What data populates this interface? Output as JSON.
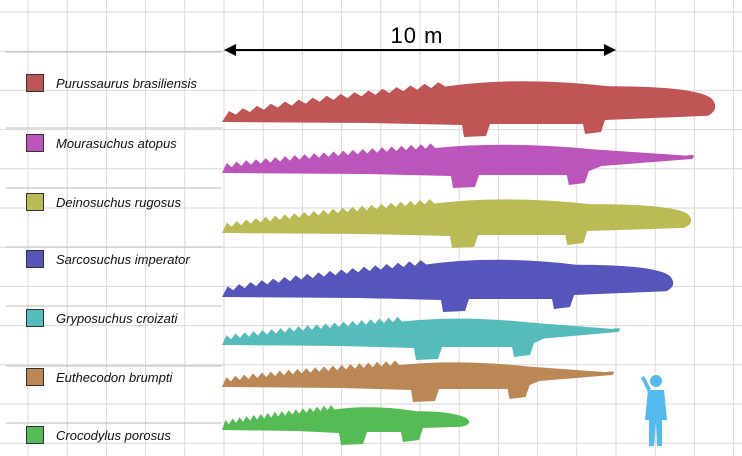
{
  "scale": {
    "label": "10 m"
  },
  "species": [
    {
      "name": "Purussaurus brasiliensis",
      "color": "#c05555"
    },
    {
      "name": "Mourasuchus atopus",
      "color": "#bb55bb"
    },
    {
      "name": "Deinosuchus rugosus",
      "color": "#bbbb55"
    },
    {
      "name": "Sarcosuchus imperator",
      "color": "#5555bb"
    },
    {
      "name": "Gryposuchus croizati",
      "color": "#55bbbb"
    },
    {
      "name": "Euthecodon brumpti",
      "color": "#bb8855"
    },
    {
      "name": "Crocodylus porosus",
      "color": "#55bb55"
    }
  ],
  "human": {
    "color": "#55bbee",
    "icon": "human-silhouette-icon"
  }
}
